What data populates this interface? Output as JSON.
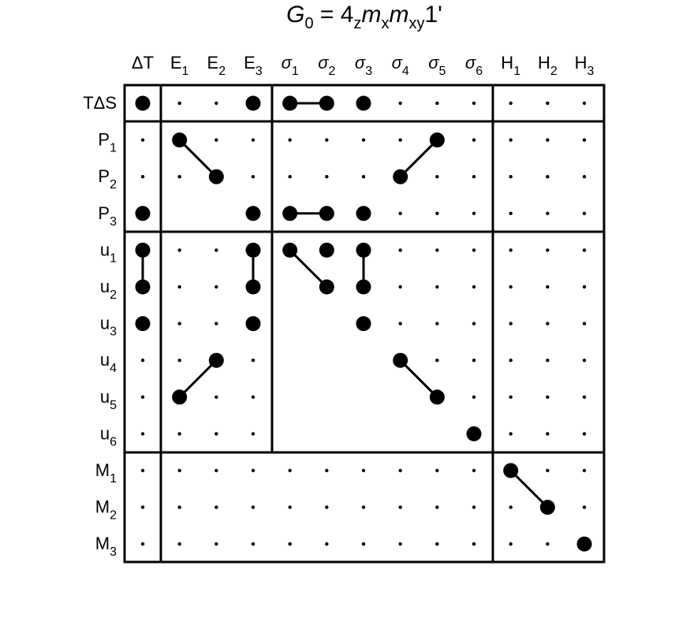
{
  "title": [
    {
      "text": "G",
      "style": "italic"
    },
    {
      "text": "0",
      "style": "sub"
    },
    {
      "text": " = 4"
    },
    {
      "text": "z",
      "style": "sub"
    },
    {
      "text": "m",
      "style": "italic"
    },
    {
      "text": "x",
      "style": "sub"
    },
    {
      "text": "m",
      "style": "italic"
    },
    {
      "text": "xy",
      "style": "sub"
    },
    {
      "text": "1'"
    }
  ],
  "columns": [
    {
      "main": "ΔT"
    },
    {
      "main": "E",
      "sub": "1"
    },
    {
      "main": "E",
      "sub": "2"
    },
    {
      "main": "E",
      "sub": "3"
    },
    {
      "main": "σ",
      "sub": "1",
      "style": "italic"
    },
    {
      "main": "σ",
      "sub": "2",
      "style": "italic"
    },
    {
      "main": "σ",
      "sub": "3",
      "style": "italic"
    },
    {
      "main": "σ",
      "sub": "4",
      "style": "italic"
    },
    {
      "main": "σ",
      "sub": "5",
      "style": "italic"
    },
    {
      "main": "σ",
      "sub": "6",
      "style": "italic"
    },
    {
      "main": "H",
      "sub": "1"
    },
    {
      "main": "H",
      "sub": "2"
    },
    {
      "main": "H",
      "sub": "3"
    }
  ],
  "rows": [
    {
      "main": "TΔS"
    },
    {
      "main": "P",
      "sub": "1"
    },
    {
      "main": "P",
      "sub": "2"
    },
    {
      "main": "P",
      "sub": "3"
    },
    {
      "main": "u",
      "sub": "1"
    },
    {
      "main": "u",
      "sub": "2"
    },
    {
      "main": "u",
      "sub": "3"
    },
    {
      "main": "u",
      "sub": "4"
    },
    {
      "main": "u",
      "sub": "5"
    },
    {
      "main": "u",
      "sub": "6"
    },
    {
      "main": "M",
      "sub": "1"
    },
    {
      "main": "M",
      "sub": "2"
    },
    {
      "main": "M",
      "sub": "3"
    }
  ]
}
